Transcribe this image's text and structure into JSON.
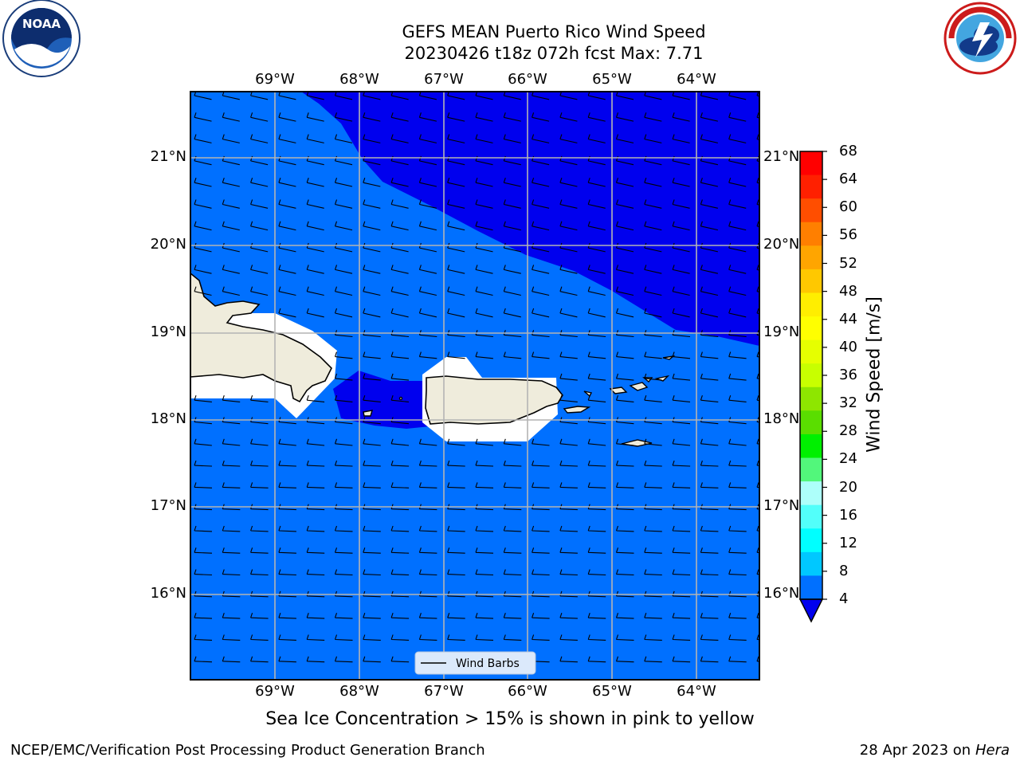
{
  "title": {
    "line1": "GEFS MEAN Puerto Rico Wind Speed",
    "line2": "20230426 t18z 072h fcst   Max: 7.71"
  },
  "logos": {
    "left": {
      "name": "noaa-logo",
      "text": "NOAA"
    },
    "right": {
      "name": "nws-logo",
      "text": "NATIONAL WEATHER SERVICE"
    }
  },
  "map": {
    "lon_labels": [
      "69°W",
      "68°W",
      "67°W",
      "66°W",
      "65°W",
      "64°W"
    ],
    "lat_labels": [
      "21°N",
      "20°N",
      "19°N",
      "18°N",
      "17°N",
      "16°N"
    ],
    "legend_label": "Wind Barbs",
    "colors": {
      "ocean_light": "#0070ff",
      "ocean_dark": "#0000ee",
      "land": "#efecdc"
    }
  },
  "colorbar": {
    "label": "Wind Speed [m/s]",
    "ticks": [
      "68",
      "64",
      "60",
      "56",
      "52",
      "48",
      "44",
      "40",
      "36",
      "32",
      "28",
      "24",
      "20",
      "16",
      "12",
      "8",
      "4"
    ],
    "colors": [
      "#ff0000",
      "#ff2000",
      "#ff4e00",
      "#ff7f00",
      "#ffa500",
      "#ffc800",
      "#ffee00",
      "#ffff00",
      "#e6ff00",
      "#c8ff00",
      "#8ee600",
      "#5ade00",
      "#00f000",
      "#52f77b",
      "#adfffa",
      "#52fffa",
      "#00ffff",
      "#00c8ff",
      "#0070ff"
    ],
    "under_color": "#0000ee"
  },
  "caption": "Sea Ice Concentration > 15% is shown in pink to yellow",
  "footer": {
    "left": "NCEP/EMC/Verification Post Processing Product Generation Branch",
    "date": "28 Apr 2023 on ",
    "machine": "Hera"
  }
}
